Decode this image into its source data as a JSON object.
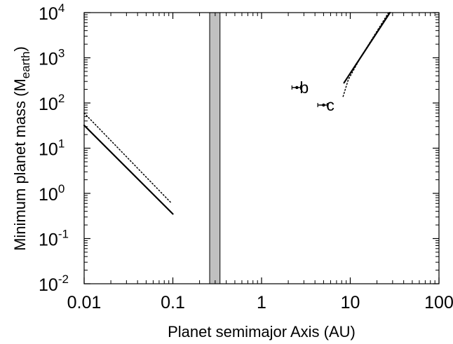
{
  "chart_data": {
    "type": "line",
    "xlabel": "Planet semimajor Axis (AU)",
    "ylabel": {
      "main": "Minimum planet mass (M",
      "sub": "earth",
      "close": ")"
    },
    "xscale": "log",
    "yscale": "log",
    "xlim": [
      0.01,
      100
    ],
    "ylim": [
      0.01,
      10000
    ],
    "grid": false,
    "x_ticks": [
      {
        "value": 0.01,
        "label": "0.01"
      },
      {
        "value": 0.1,
        "label": "0.1"
      },
      {
        "value": 1,
        "label": "1"
      },
      {
        "value": 10,
        "label": "10"
      },
      {
        "value": 100,
        "label": "100"
      }
    ],
    "y_ticks": [
      {
        "value": 0.01,
        "base": "10",
        "exp": "-2"
      },
      {
        "value": 0.1,
        "base": "10",
        "exp": "-1"
      },
      {
        "value": 1,
        "base": "10",
        "exp": "0"
      },
      {
        "value": 10,
        "base": "10",
        "exp": "1"
      },
      {
        "value": 100,
        "base": "10",
        "exp": "2"
      },
      {
        "value": 1000,
        "base": "10",
        "exp": "3"
      },
      {
        "value": 10000,
        "base": "10",
        "exp": "4"
      }
    ],
    "excluded_band": {
      "x_start": 0.26,
      "x_end": 0.34,
      "color": "#c0c0c0"
    },
    "series": [
      {
        "style": "solid",
        "points": [
          [
            0.01,
            32
          ],
          [
            0.1,
            0.35
          ]
        ]
      },
      {
        "style": "dotted",
        "points": [
          [
            0.01,
            60
          ],
          [
            0.097,
            0.6
          ]
        ]
      },
      {
        "style": "solid",
        "points": [
          [
            8.5,
            280
          ],
          [
            28,
            10000
          ]
        ]
      },
      {
        "style": "dotted",
        "points": [
          [
            8.3,
            140
          ],
          [
            9.5,
            330
          ],
          [
            13,
            1000
          ],
          [
            27,
            10000
          ]
        ]
      }
    ],
    "planets": [
      {
        "label": "b",
        "x": 2.5,
        "y": 220,
        "x_err": [
          2.2,
          2.75
        ]
      },
      {
        "label": "c",
        "x": 5.0,
        "y": 90,
        "x_err": [
          4.3,
          5.5
        ]
      }
    ]
  }
}
